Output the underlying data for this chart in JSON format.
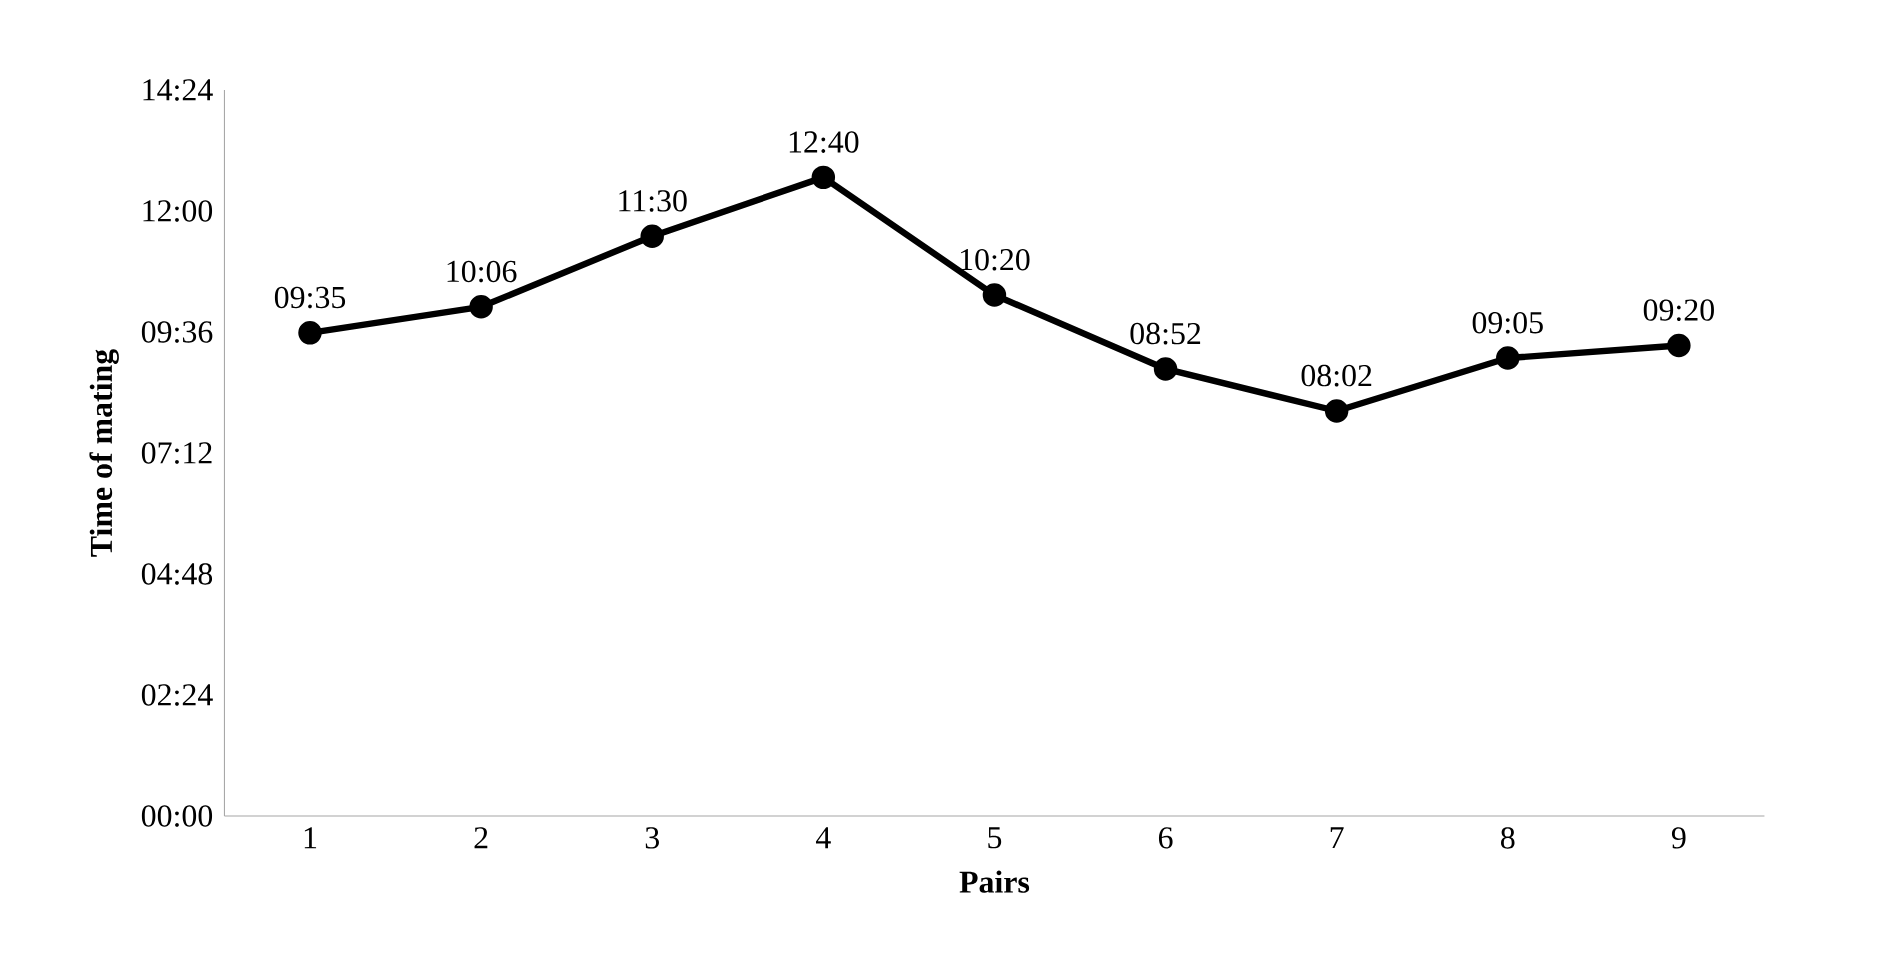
{
  "chart_data": {
    "type": "line",
    "xlabel": "Pairs",
    "ylabel": "Time of mating",
    "categories": [
      "1",
      "2",
      "3",
      "4",
      "5",
      "6",
      "7",
      "8",
      "9"
    ],
    "values": [
      9.583,
      10.1,
      11.5,
      12.667,
      10.333,
      8.867,
      8.033,
      9.083,
      9.333
    ],
    "value_labels": [
      "09:35",
      "10:06",
      "11:30",
      "12:40",
      "10:20",
      "08:52",
      "08:02",
      "09:05",
      "09:20"
    ],
    "color": "#000000",
    "marker": "circle",
    "line_style": "solid",
    "ylim": [
      0,
      14.4
    ],
    "yticks": [
      {
        "value": 0,
        "label": "00:00"
      },
      {
        "value": 2.4,
        "label": "02:24"
      },
      {
        "value": 4.8,
        "label": "04:48"
      },
      {
        "value": 7.2,
        "label": "07:12"
      },
      {
        "value": 9.6,
        "label": "09:36"
      },
      {
        "value": 12,
        "label": "12:00"
      },
      {
        "value": 14.4,
        "label": "14:24"
      }
    ]
  }
}
